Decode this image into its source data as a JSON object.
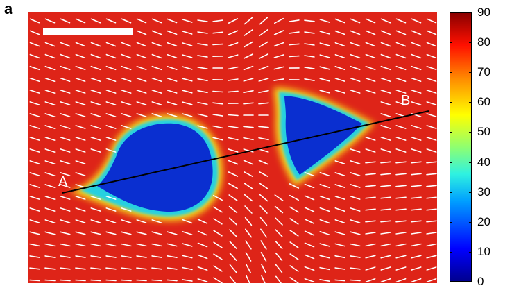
{
  "figure": {
    "panel_letter": "a",
    "point_labels": {
      "start": "A",
      "end": "B"
    },
    "colorbar": {
      "ticks": [
        "90",
        "80",
        "70",
        "60",
        "50",
        "40",
        "30",
        "20",
        "10",
        "0"
      ],
      "range": [
        0,
        90
      ],
      "colormap": "jet"
    },
    "colors": {
      "background_field": "#e0231a",
      "droplet": "#0a2fd0",
      "director": "#ffffff",
      "line": "#000000",
      "scale_bar": "#ffffff"
    },
    "icons": [
      "director-field",
      "scale-bar",
      "line-profile"
    ]
  }
}
